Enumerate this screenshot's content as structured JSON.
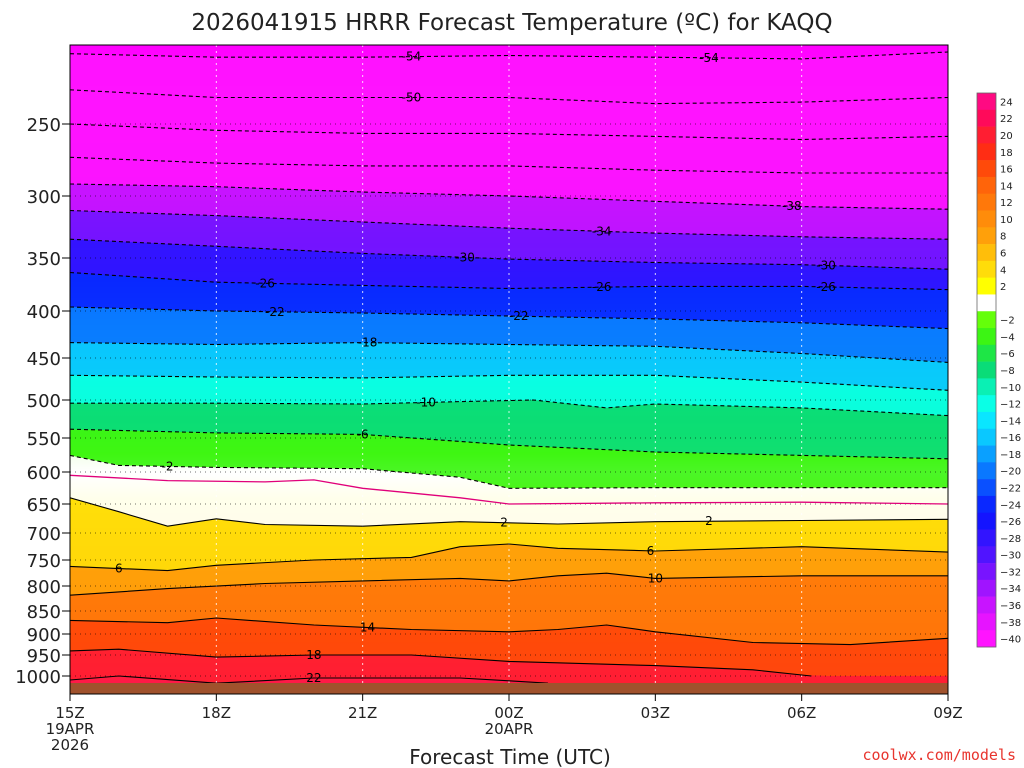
{
  "title": "2026041915 HRRR Forecast Temperature (ºC) for KAQQ",
  "credit": "coolwx.com/models",
  "chart_data": {
    "type": "heatmap",
    "title": "2026041915 HRRR Forecast Temperature (ºC) for KAQQ",
    "xlabel": "Forecast Time (UTC)",
    "ylabel": "",
    "x_ticks": [
      {
        "hour": 0,
        "lines": [
          "15Z",
          "19APR",
          "2026"
        ]
      },
      {
        "hour": 3,
        "lines": [
          "18Z"
        ]
      },
      {
        "hour": 6,
        "lines": [
          "21Z"
        ]
      },
      {
        "hour": 9,
        "lines": [
          "00Z",
          "20APR"
        ]
      },
      {
        "hour": 12,
        "lines": [
          "03Z"
        ]
      },
      {
        "hour": 15,
        "lines": [
          "06Z"
        ]
      },
      {
        "hour": 18,
        "lines": [
          "09Z"
        ]
      }
    ],
    "y_ticks": [
      250,
      300,
      350,
      400,
      450,
      500,
      550,
      600,
      650,
      700,
      750,
      800,
      850,
      900,
      950,
      1000
    ],
    "y_scale": "log-pressure",
    "y_range_hpa": [
      200,
      1025
    ],
    "grid": "dotted",
    "colorbar": {
      "position": "right",
      "levels": [
        {
          "label": "24",
          "color": "#ff0a82"
        },
        {
          "label": "22",
          "color": "#ff0a5a"
        },
        {
          "label": "20",
          "color": "#ff1e32"
        },
        {
          "label": "18",
          "color": "#ff2d14"
        },
        {
          "label": "16",
          "color": "#ff4a0a"
        },
        {
          "label": "14",
          "color": "#ff640a"
        },
        {
          "label": "12",
          "color": "#ff780a"
        },
        {
          "label": "10",
          "color": "#ff8c0a"
        },
        {
          "label": "8",
          "color": "#ffa00a"
        },
        {
          "label": "6",
          "color": "#ffbe0a"
        },
        {
          "label": "4",
          "color": "#ffdc0a"
        },
        {
          "label": "2",
          "color": "#ffff00"
        },
        {
          "label": "",
          "color": "#ffffff"
        },
        {
          "label": "−2",
          "color": "#64ff0a"
        },
        {
          "label": "−4",
          "color": "#3cf514"
        },
        {
          "label": "−6",
          "color": "#1ee646"
        },
        {
          "label": "−8",
          "color": "#0adc78"
        },
        {
          "label": "−10",
          "color": "#0af0b4"
        },
        {
          "label": "−12",
          "color": "#0affe6"
        },
        {
          "label": "−14",
          "color": "#0ae6ff"
        },
        {
          "label": "−16",
          "color": "#0ac8ff"
        },
        {
          "label": "−18",
          "color": "#0aa0ff"
        },
        {
          "label": "−20",
          "color": "#0a78ff"
        },
        {
          "label": "−22",
          "color": "#0a50ff"
        },
        {
          "label": "−24",
          "color": "#0a28ff"
        },
        {
          "label": "−26",
          "color": "#1414ff"
        },
        {
          "label": "−28",
          "color": "#3214ff"
        },
        {
          "label": "−30",
          "color": "#5014ff"
        },
        {
          "label": "−32",
          "color": "#7814ff"
        },
        {
          "label": "−34",
          "color": "#a014ff"
        },
        {
          "label": "−36",
          "color": "#c814ff"
        },
        {
          "label": "−38",
          "color": "#e614ff"
        },
        {
          "label": "−40",
          "color": "#ff14ff"
        }
      ]
    },
    "ground_color": "#a0522d",
    "isotherms": [
      {
        "value": -54,
        "style": "dashed",
        "label": "-54",
        "label_hours": [
          7.0,
          13.1
        ],
        "pressure": [
          [
            0,
            205
          ],
          [
            3,
            207
          ],
          [
            6,
            207
          ],
          [
            9,
            206
          ],
          [
            12,
            207
          ],
          [
            15,
            208
          ],
          [
            18,
            204
          ]
        ]
      },
      {
        "value": -50,
        "style": "dashed",
        "label": "-50",
        "label_hours": [
          7.0
        ],
        "pressure": [
          [
            0,
            227
          ],
          [
            3,
            232
          ],
          [
            6,
            232
          ],
          [
            9,
            232
          ],
          [
            12,
            236
          ],
          [
            15,
            235
          ],
          [
            18,
            232
          ]
        ]
      },
      {
        "value": -46,
        "style": "dashed",
        "label": "",
        "label_hours": [],
        "pressure": [
          [
            0,
            250
          ],
          [
            3,
            254
          ],
          [
            6,
            256
          ],
          [
            9,
            256
          ],
          [
            12,
            258
          ],
          [
            15,
            260
          ],
          [
            18,
            258
          ]
        ]
      },
      {
        "value": -42,
        "style": "dashed",
        "label": "",
        "label_hours": [],
        "pressure": [
          [
            0,
            272
          ],
          [
            3,
            276
          ],
          [
            6,
            278
          ],
          [
            9,
            278
          ],
          [
            12,
            281
          ],
          [
            15,
            283
          ],
          [
            18,
            283
          ]
        ]
      },
      {
        "value": -38,
        "style": "dashed",
        "label": "-38",
        "label_hours": [
          14.8
        ],
        "pressure": [
          [
            0,
            291
          ],
          [
            3,
            293
          ],
          [
            6,
            297
          ],
          [
            9,
            300
          ],
          [
            12,
            304
          ],
          [
            15,
            308
          ],
          [
            18,
            310
          ]
        ]
      },
      {
        "value": -34,
        "style": "dashed",
        "label": "-34",
        "label_hours": [
          10.9
        ],
        "pressure": [
          [
            0,
            311
          ],
          [
            3,
            315
          ],
          [
            6,
            320
          ],
          [
            9,
            325
          ],
          [
            12,
            329
          ],
          [
            15,
            332
          ],
          [
            18,
            334
          ]
        ]
      },
      {
        "value": -30,
        "style": "dashed",
        "label": "-30",
        "label_hours": [
          8.1,
          15.5
        ],
        "pressure": [
          [
            0,
            334
          ],
          [
            3,
            340
          ],
          [
            6,
            346
          ],
          [
            9,
            351
          ],
          [
            12,
            354
          ],
          [
            15,
            356
          ],
          [
            18,
            360
          ]
        ]
      },
      {
        "value": -26,
        "style": "dashed",
        "label": "-26",
        "label_hours": [
          4.0,
          10.9,
          15.5
        ],
        "pressure": [
          [
            0,
            363
          ],
          [
            3,
            372
          ],
          [
            6,
            375
          ],
          [
            9,
            378
          ],
          [
            12,
            376
          ],
          [
            15,
            376
          ],
          [
            18,
            379
          ]
        ]
      },
      {
        "value": -22,
        "style": "dashed",
        "label": "-22",
        "label_hours": [
          4.2,
          9.2
        ],
        "pressure": [
          [
            0,
            396
          ],
          [
            3,
            400
          ],
          [
            6,
            402
          ],
          [
            9,
            405
          ],
          [
            12,
            408
          ],
          [
            15,
            412
          ],
          [
            18,
            418
          ]
        ]
      },
      {
        "value": -18,
        "style": "dashed",
        "label": "-18",
        "label_hours": [
          6.1
        ],
        "pressure": [
          [
            0,
            433
          ],
          [
            3,
            435
          ],
          [
            6,
            433
          ],
          [
            9,
            435
          ],
          [
            12,
            437
          ],
          [
            15,
            445
          ],
          [
            18,
            455
          ]
        ]
      },
      {
        "value": -14,
        "style": "dashed",
        "label": "",
        "label_hours": [],
        "pressure": [
          [
            0,
            470
          ],
          [
            3,
            472
          ],
          [
            6,
            473
          ],
          [
            9,
            470
          ],
          [
            12,
            470
          ],
          [
            15,
            478
          ],
          [
            18,
            488
          ]
        ]
      },
      {
        "value": -10,
        "style": "dashed",
        "label": "-10",
        "label_hours": [
          7.3
        ],
        "pressure": [
          [
            0,
            504
          ],
          [
            3,
            504
          ],
          [
            6,
            505
          ],
          [
            8,
            502
          ],
          [
            9.5,
            500
          ],
          [
            11,
            510
          ],
          [
            12,
            505
          ],
          [
            15,
            510
          ],
          [
            18,
            520
          ]
        ]
      },
      {
        "value": -6,
        "style": "dashed",
        "label": "-6",
        "label_hours": [
          6.0
        ],
        "pressure": [
          [
            0,
            538
          ],
          [
            3,
            543
          ],
          [
            6,
            545
          ],
          [
            9,
            560
          ],
          [
            12,
            570
          ],
          [
            15,
            575
          ],
          [
            18,
            580
          ]
        ]
      },
      {
        "value": -2,
        "style": "dashed",
        "label": "-2",
        "label_hours": [
          2.0
        ],
        "pressure": [
          [
            0,
            575
          ],
          [
            1,
            590
          ],
          [
            3,
            593
          ],
          [
            6,
            595
          ],
          [
            8,
            608
          ],
          [
            9,
            625
          ],
          [
            12,
            624
          ],
          [
            15,
            624
          ],
          [
            18,
            624
          ]
        ]
      },
      {
        "value": 0,
        "style": "magenta",
        "label": "",
        "label_hours": [],
        "pressure": [
          [
            0,
            605
          ],
          [
            2,
            613
          ],
          [
            4,
            615
          ],
          [
            5,
            612
          ],
          [
            6,
            625
          ],
          [
            8,
            640
          ],
          [
            9,
            650
          ],
          [
            12,
            648
          ],
          [
            15,
            647
          ],
          [
            18,
            650
          ]
        ]
      },
      {
        "value": 2,
        "style": "solid",
        "label": "2",
        "label_hours": [
          8.9,
          13.1
        ],
        "pressure": [
          [
            0,
            640
          ],
          [
            1,
            663
          ],
          [
            2,
            688
          ],
          [
            3,
            675
          ],
          [
            4,
            685
          ],
          [
            6,
            688
          ],
          [
            8,
            680
          ],
          [
            10,
            684
          ],
          [
            12,
            680
          ],
          [
            15,
            678
          ],
          [
            18,
            676
          ]
        ]
      },
      {
        "value": 6,
        "style": "solid",
        "label": "6",
        "label_hours": [
          1.0,
          11.9
        ],
        "pressure": [
          [
            0,
            762
          ],
          [
            2,
            770
          ],
          [
            3,
            760
          ],
          [
            5,
            750
          ],
          [
            7,
            745
          ],
          [
            8,
            725
          ],
          [
            9,
            720
          ],
          [
            10,
            728
          ],
          [
            12,
            733
          ],
          [
            15,
            725
          ],
          [
            18,
            735
          ]
        ]
      },
      {
        "value": 10,
        "style": "solid",
        "label": "10",
        "label_hours": [
          12.0
        ],
        "pressure": [
          [
            0,
            818
          ],
          [
            2,
            805
          ],
          [
            4,
            795
          ],
          [
            6,
            790
          ],
          [
            8,
            785
          ],
          [
            9,
            790
          ],
          [
            10,
            780
          ],
          [
            11,
            775
          ],
          [
            12,
            785
          ],
          [
            15,
            780
          ],
          [
            18,
            780
          ]
        ]
      },
      {
        "value": 14,
        "style": "solid",
        "label": "14",
        "label_hours": [
          6.1
        ],
        "pressure": [
          [
            0,
            870
          ],
          [
            2,
            875
          ],
          [
            3,
            865
          ],
          [
            5,
            880
          ],
          [
            7,
            890
          ],
          [
            9,
            895
          ],
          [
            10,
            890
          ],
          [
            11,
            880
          ],
          [
            12,
            895
          ],
          [
            14,
            920
          ],
          [
            16,
            925
          ],
          [
            18,
            910
          ]
        ]
      },
      {
        "value": 18,
        "style": "solid",
        "label": "18",
        "label_hours": [
          5.0
        ],
        "pressure": [
          [
            0,
            940
          ],
          [
            1,
            936
          ],
          [
            3,
            955
          ],
          [
            5,
            950
          ],
          [
            7,
            950
          ],
          [
            9,
            965
          ],
          [
            12,
            975
          ],
          [
            14,
            985
          ],
          [
            15.2,
            1000
          ]
        ]
      },
      {
        "value": 22,
        "style": "solid",
        "label": "22",
        "label_hours": [
          5.0
        ],
        "pressure": [
          [
            0,
            1010
          ],
          [
            1,
            1000
          ],
          [
            3,
            1018
          ],
          [
            5,
            1005
          ],
          [
            8,
            1005
          ],
          [
            9,
            1012
          ],
          [
            9.8,
            1018
          ]
        ]
      }
    ]
  }
}
